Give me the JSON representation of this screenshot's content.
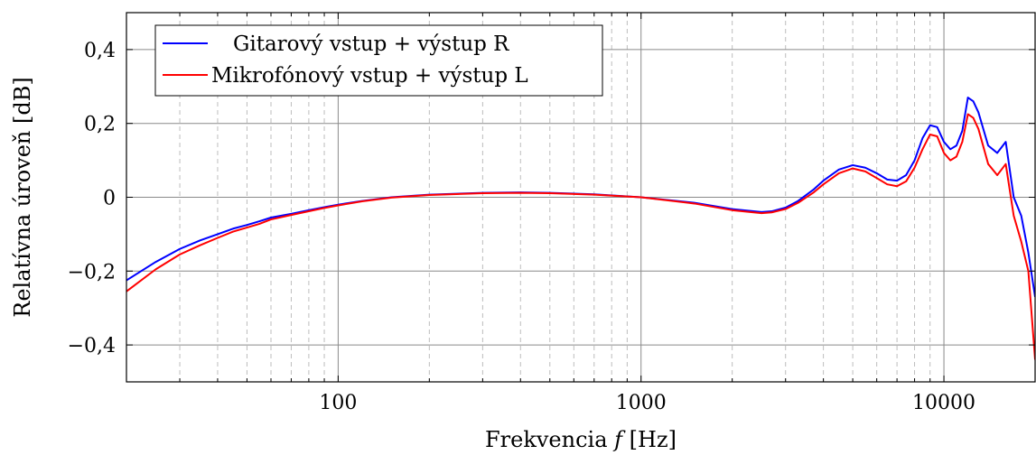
{
  "chart_data": {
    "type": "line",
    "xscale": "log",
    "xlim": [
      20,
      20000
    ],
    "ylim": [
      -0.5,
      0.5
    ],
    "xticks": [
      100,
      1000,
      10000
    ],
    "xtick_labels": [
      "100",
      "1000",
      "10000"
    ],
    "yticks": [
      -0.4,
      -0.2,
      0,
      0.2,
      0.4
    ],
    "ytick_labels": [
      "−0,4",
      "−0,2",
      "0",
      "0,2",
      "0,4"
    ],
    "xlabel": "Frekvencia f [Hz]",
    "ylabel": "Relatívna úroveň  [dB]",
    "grid": true,
    "legend_position": "top-left",
    "series": [
      {
        "name": "Gitarový vstup + výstup R",
        "color": "#0000ff",
        "x": [
          20,
          25,
          30,
          35,
          40,
          45,
          50,
          55,
          60,
          70,
          80,
          90,
          100,
          120,
          150,
          200,
          300,
          400,
          500,
          700,
          1000,
          1500,
          2000,
          2500,
          2700,
          3000,
          3300,
          3700,
          4000,
          4500,
          5000,
          5500,
          6000,
          6500,
          7000,
          7500,
          8000,
          8500,
          9000,
          9500,
          10000,
          10500,
          11000,
          11500,
          12000,
          12500,
          13000,
          14000,
          15000,
          16000,
          17000,
          18000,
          19000,
          20000
        ],
        "y": [
          -0.225,
          -0.175,
          -0.14,
          -0.117,
          -0.1,
          -0.085,
          -0.075,
          -0.065,
          -0.055,
          -0.045,
          -0.035,
          -0.027,
          -0.02,
          -0.01,
          0.0,
          0.007,
          0.012,
          0.013,
          0.012,
          0.008,
          0.0,
          -0.015,
          -0.032,
          -0.04,
          -0.038,
          -0.028,
          -0.01,
          0.02,
          0.045,
          0.075,
          0.087,
          0.08,
          0.065,
          0.048,
          0.045,
          0.06,
          0.1,
          0.16,
          0.195,
          0.19,
          0.15,
          0.13,
          0.14,
          0.18,
          0.27,
          0.26,
          0.23,
          0.14,
          0.12,
          0.15,
          0.0,
          -0.05,
          -0.15,
          -0.27
        ]
      },
      {
        "name": "Mikrofónový vstup + výstup L",
        "color": "#ff0000",
        "x": [
          20,
          25,
          30,
          35,
          40,
          45,
          50,
          55,
          60,
          70,
          80,
          90,
          100,
          120,
          150,
          200,
          300,
          400,
          500,
          700,
          1000,
          1500,
          2000,
          2500,
          2700,
          3000,
          3300,
          3700,
          4000,
          4500,
          5000,
          5500,
          6000,
          6500,
          7000,
          7500,
          8000,
          8500,
          9000,
          9500,
          10000,
          10500,
          11000,
          11500,
          12000,
          12500,
          13000,
          14000,
          15000,
          16000,
          17000,
          18000,
          19000,
          20000
        ],
        "y": [
          -0.255,
          -0.195,
          -0.155,
          -0.13,
          -0.11,
          -0.093,
          -0.082,
          -0.072,
          -0.06,
          -0.048,
          -0.038,
          -0.029,
          -0.022,
          -0.011,
          -0.001,
          0.006,
          0.011,
          0.012,
          0.011,
          0.007,
          0.0,
          -0.017,
          -0.035,
          -0.043,
          -0.041,
          -0.032,
          -0.015,
          0.012,
          0.035,
          0.065,
          0.078,
          0.07,
          0.052,
          0.035,
          0.03,
          0.043,
          0.08,
          0.13,
          0.17,
          0.165,
          0.12,
          0.1,
          0.11,
          0.15,
          0.225,
          0.215,
          0.185,
          0.09,
          0.06,
          0.09,
          -0.05,
          -0.12,
          -0.2,
          -0.44
        ]
      }
    ]
  }
}
